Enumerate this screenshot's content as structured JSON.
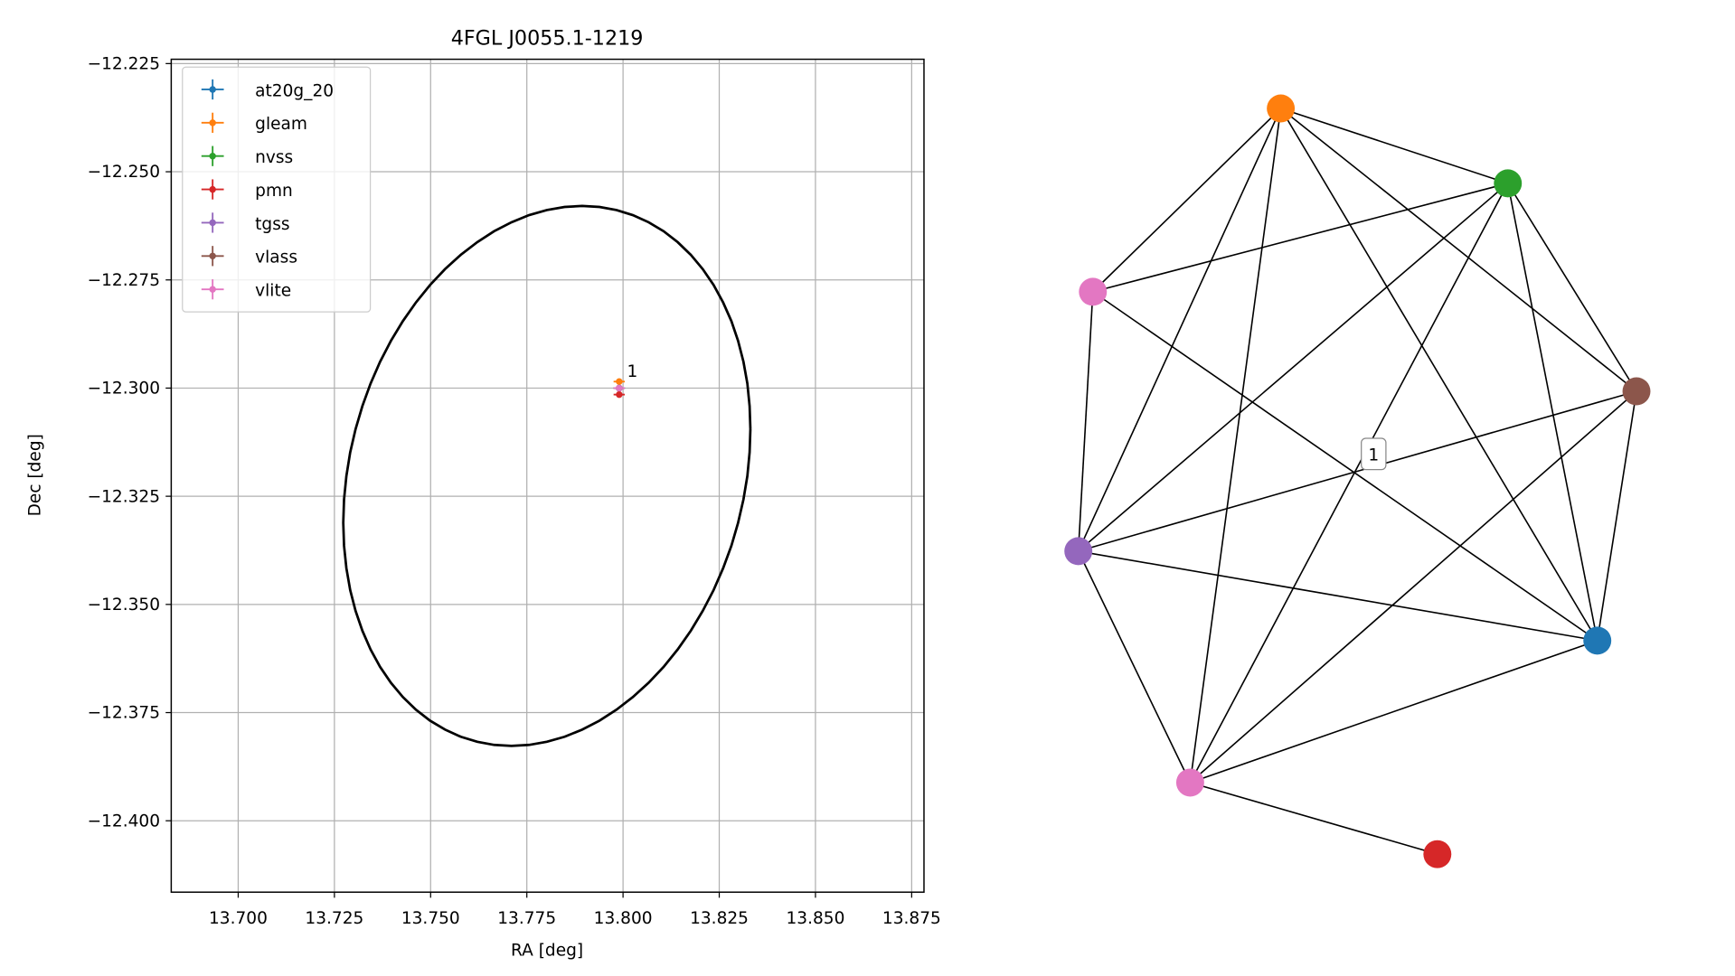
{
  "chart_data": {
    "type": "scatter",
    "title": "4FGL J0055.1-1219",
    "xlabel": "RA [deg]",
    "ylabel": "Dec [deg]",
    "xlim": [
      13.6826,
      13.8782
    ],
    "ylim": [
      -12.4165,
      -12.224
    ],
    "xticks": [
      {
        "value": 13.7,
        "label": "13.700"
      },
      {
        "value": 13.725,
        "label": "13.725"
      },
      {
        "value": 13.75,
        "label": "13.750"
      },
      {
        "value": 13.775,
        "label": "13.775"
      },
      {
        "value": 13.8,
        "label": "13.800"
      },
      {
        "value": 13.825,
        "label": "13.825"
      },
      {
        "value": 13.85,
        "label": "13.850"
      },
      {
        "value": 13.875,
        "label": "13.875"
      }
    ],
    "yticks": [
      {
        "value": -12.225,
        "label": "−12.225"
      },
      {
        "value": -12.25,
        "label": "−12.250"
      },
      {
        "value": -12.275,
        "label": "−12.275"
      },
      {
        "value": -12.3,
        "label": "−12.300"
      },
      {
        "value": -12.325,
        "label": "−12.325"
      },
      {
        "value": -12.35,
        "label": "−12.350"
      },
      {
        "value": -12.375,
        "label": "−12.375"
      },
      {
        "value": -12.4,
        "label": "−12.400"
      }
    ],
    "grid": true,
    "legend": "upper left",
    "series": [
      {
        "name": "at20g_20",
        "color": "#1f77b4",
        "x": [
          13.799
        ],
        "y": [
          -12.3
        ]
      },
      {
        "name": "gleam",
        "color": "#ff7f0e",
        "x": [
          13.799
        ],
        "y": [
          -12.2985
        ]
      },
      {
        "name": "nvss",
        "color": "#2ca02c",
        "x": [
          13.799
        ],
        "y": [
          -12.3
        ]
      },
      {
        "name": "pmn",
        "color": "#d62728",
        "x": [
          13.799
        ],
        "y": [
          -12.3015
        ]
      },
      {
        "name": "tgss",
        "color": "#9467bd",
        "x": [
          13.799
        ],
        "y": [
          -12.3
        ]
      },
      {
        "name": "vlass",
        "color": "#8c564b",
        "x": [
          13.799
        ],
        "y": [
          -12.3
        ]
      },
      {
        "name": "vlite",
        "color": "#e377c2",
        "x": [
          13.799
        ],
        "y": [
          -12.3
        ]
      }
    ],
    "annotation": "1",
    "ellipse": {
      "center": [
        13.7802,
        -12.3203
      ],
      "semi_x": 0.0529,
      "semi_y": 0.0624,
      "phase": 80,
      "color": "#000000"
    }
  },
  "graph": {
    "nodes": [
      {
        "color": "#ff7f0e"
      },
      {
        "color": "#2ca02c"
      },
      {
        "color": "#e377c2"
      },
      {
        "color": "#8c564b"
      },
      {
        "color": "#9467bd"
      },
      {
        "color": "#1f77b4"
      },
      {
        "color": "#e377c2"
      },
      {
        "color": "#d62728"
      }
    ],
    "edges": [
      [
        0,
        1
      ],
      [
        0,
        2
      ],
      [
        0,
        3
      ],
      [
        0,
        4
      ],
      [
        0,
        5
      ],
      [
        0,
        6
      ],
      [
        1,
        2
      ],
      [
        1,
        3
      ],
      [
        1,
        4
      ],
      [
        1,
        5
      ],
      [
        1,
        6
      ],
      [
        2,
        4
      ],
      [
        2,
        5
      ],
      [
        3,
        4
      ],
      [
        3,
        5
      ],
      [
        3,
        6
      ],
      [
        4,
        5
      ],
      [
        4,
        6
      ],
      [
        5,
        6
      ],
      [
        6,
        7
      ]
    ],
    "edge_label": "1"
  }
}
